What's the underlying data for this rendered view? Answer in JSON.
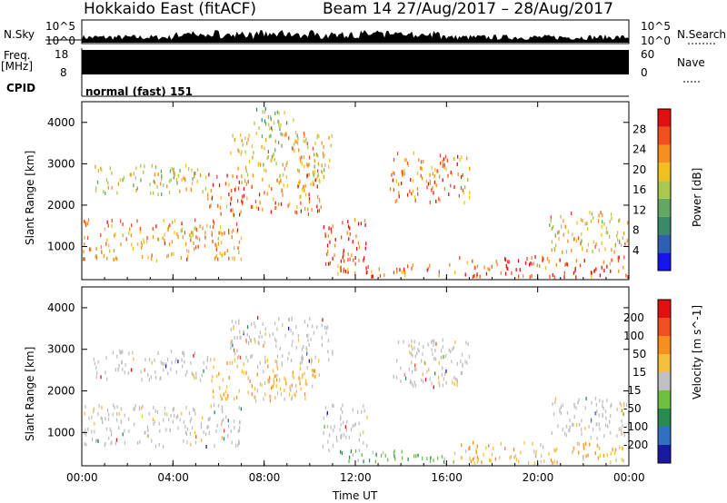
{
  "header": {
    "station": "Hokkaido East (fitACF)",
    "beam_dates": "Beam 14 27/Aug/2017 – 28/Aug/2017"
  },
  "top_panels": {
    "nsky_label": "N.Sky",
    "nsearch_label": "N.Search",
    "nsky_ticks": [
      "10^5",
      "10^0"
    ],
    "nsearch_ticks": [
      "10^5",
      "10^0"
    ],
    "freq_label_1": "Freq.",
    "freq_label_2": "[MHz]",
    "freq_ticks": [
      "18",
      "8"
    ],
    "nave_label": "Nave",
    "nave_ticks": [
      "60",
      "0"
    ],
    "cpid_label": "CPID",
    "cpid_text": "normal (fast) 151"
  },
  "chart_data": [
    {
      "type": "heatmap",
      "name": "power",
      "ylabel": "Slant Range [km]",
      "xlabel": "",
      "ylim": [
        200,
        4500
      ],
      "yticks": [
        1000,
        2000,
        3000,
        4000
      ],
      "colorbar_label": "Power [dB]",
      "colorbar_ticks": [
        28,
        24,
        20,
        16,
        12,
        8,
        4
      ],
      "colorbar_range": [
        0,
        32
      ],
      "regions": [
        {
          "t0": 0.0,
          "t1": 7.0,
          "r0": 700,
          "r1": 1700,
          "level": 24
        },
        {
          "t0": 0.5,
          "t1": 5.5,
          "r0": 2300,
          "r1": 3000,
          "level": 18
        },
        {
          "t0": 5.5,
          "t1": 10.5,
          "r0": 1800,
          "r1": 2800,
          "level": 26
        },
        {
          "t0": 6.5,
          "t1": 11.0,
          "r0": 2700,
          "r1": 3800,
          "level": 20
        },
        {
          "t0": 10.5,
          "t1": 12.5,
          "r0": 600,
          "r1": 1700,
          "level": 30
        },
        {
          "t0": 13.5,
          "t1": 17.0,
          "r0": 2100,
          "r1": 3300,
          "level": 25
        },
        {
          "t0": 11.0,
          "t1": 16.5,
          "r0": 300,
          "r1": 600,
          "level": 27
        },
        {
          "t0": 16.5,
          "t1": 24.0,
          "r0": 300,
          "r1": 800,
          "level": 28
        },
        {
          "t0": 20.5,
          "t1": 24.0,
          "r0": 900,
          "r1": 1900,
          "level": 20
        },
        {
          "t0": 7.5,
          "t1": 9.5,
          "r0": 3700,
          "r1": 4400,
          "level": 16
        }
      ]
    },
    {
      "type": "heatmap",
      "name": "velocity",
      "ylabel": "Slant Range [km]",
      "xlabel": "Time UT",
      "ylim": [
        200,
        4500
      ],
      "yticks": [
        1000,
        2000,
        3000,
        4000
      ],
      "colorbar_label": "Velocity [m s^-1]",
      "colorbar_ticks": [
        200,
        100,
        50,
        15,
        -15,
        -50,
        -100,
        -200
      ],
      "x_tick_labels": [
        "00:00",
        "04:00",
        "08:00",
        "12:00",
        "16:00",
        "20:00",
        "00:00"
      ],
      "regions": [
        {
          "t0": 0.0,
          "t1": 7.0,
          "r0": 700,
          "r1": 1700,
          "kind": "grey"
        },
        {
          "t0": 0.5,
          "t1": 5.5,
          "r0": 2300,
          "r1": 3000,
          "kind": "grey"
        },
        {
          "t0": 5.5,
          "t1": 10.5,
          "r0": 1800,
          "r1": 2800,
          "kind": "orange"
        },
        {
          "t0": 6.5,
          "t1": 11.0,
          "r0": 2700,
          "r1": 3800,
          "kind": "grey"
        },
        {
          "t0": 10.5,
          "t1": 12.5,
          "r0": 600,
          "r1": 1700,
          "kind": "grey"
        },
        {
          "t0": 13.5,
          "t1": 17.0,
          "r0": 2100,
          "r1": 3300,
          "kind": "grey"
        },
        {
          "t0": 11.0,
          "t1": 16.5,
          "r0": 300,
          "r1": 600,
          "kind": "green"
        },
        {
          "t0": 16.5,
          "t1": 24.0,
          "r0": 300,
          "r1": 800,
          "kind": "orange"
        },
        {
          "t0": 20.5,
          "t1": 24.0,
          "r0": 900,
          "r1": 1900,
          "kind": "grey"
        }
      ]
    }
  ],
  "colors": {
    "power_scale": [
      "#1515e8",
      "#2f5fb0",
      "#3a8a6a",
      "#62a860",
      "#a8c850",
      "#f0c020",
      "#f59020",
      "#f05020",
      "#e01010"
    ],
    "velocity_scale": [
      "#1a1aa0",
      "#3070c0",
      "#2a8a50",
      "#70c040",
      "#c0c0c0",
      "#f5c040",
      "#f59020",
      "#f05020",
      "#e01010"
    ]
  }
}
